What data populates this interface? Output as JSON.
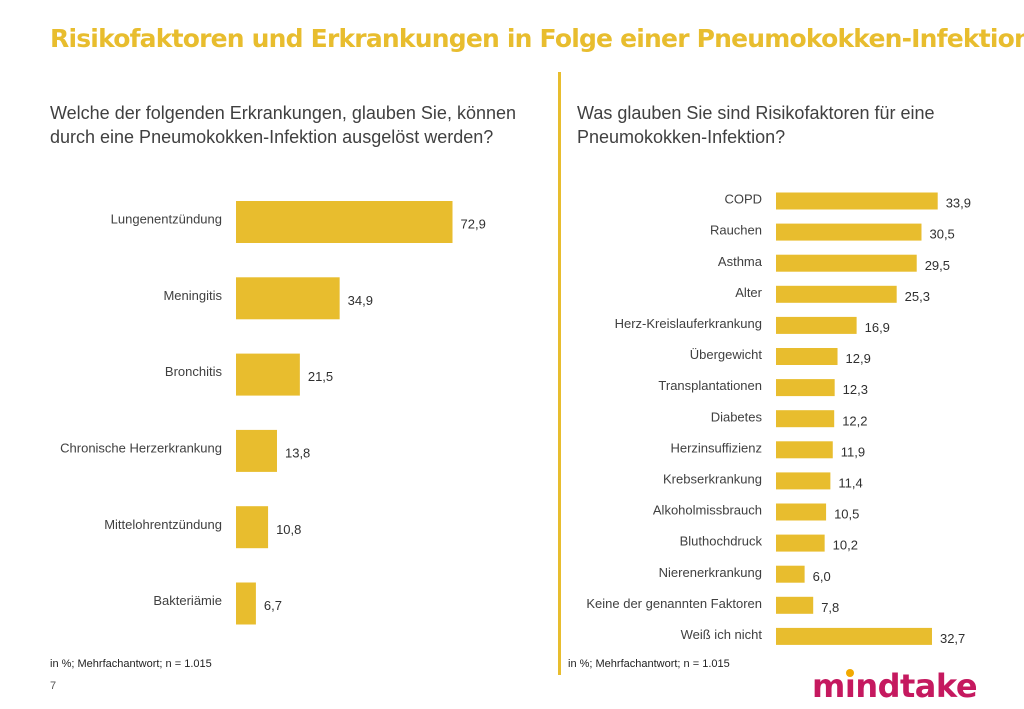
{
  "header": {
    "title": "Risikofaktoren und Erkrankungen in Folge einer Pneumokokken-Infektion"
  },
  "colors": {
    "accent": "#e8bd2e",
    "title": "#e8bd2e",
    "logo": "#c5195f",
    "logo_dot": "#f2a900"
  },
  "left": {
    "question": "Welche der folgenden Erkrankungen, glauben Sie, können durch eine Pneumokokken-Infektion ausgelöst werden?",
    "note": "in %; Mehrfachantwort;  n = 1.015"
  },
  "right": {
    "question": "Was glauben Sie sind Risikofaktoren für eine Pneumokokken-Infektion?",
    "note": "in %; Mehrfachantwort;  n = 1.015"
  },
  "footer": {
    "page_number": "7",
    "logo_pre": "m",
    "logo_dot_letter": "ı",
    "logo_post": "ndtake"
  },
  "chart_data": [
    {
      "type": "bar",
      "orientation": "horizontal",
      "title": "",
      "xlabel": "",
      "ylabel": "",
      "categories": [
        "Lungenentzündung",
        "Meningitis",
        "Bronchitis",
        "Chronische Herzerkrankung",
        "Mittelohrentzündung",
        "Bakteriämie"
      ],
      "values": [
        72.9,
        34.9,
        21.5,
        13.8,
        10.8,
        6.7
      ],
      "value_labels": [
        "72,9",
        "34,9",
        "21,5",
        "13,8",
        "10,8",
        "6,7"
      ],
      "xlim": [
        0,
        100
      ],
      "grid": false,
      "legend": "none"
    },
    {
      "type": "bar",
      "orientation": "horizontal",
      "title": "",
      "xlabel": "",
      "ylabel": "",
      "categories": [
        "COPD",
        "Rauchen",
        "Asthma",
        "Alter",
        "Herz-Kreislauferkrankung",
        "Übergewicht",
        "Transplantationen",
        "Diabetes",
        "Herzinsuffizienz",
        "Krebserkrankung",
        "Alkoholmissbrauch",
        "Bluthochdruck",
        "Nierenerkrankung",
        "Keine der genannten Faktoren",
        "Weiß ich nicht"
      ],
      "values": [
        33.9,
        30.5,
        29.5,
        25.3,
        16.9,
        12.9,
        12.3,
        12.2,
        11.9,
        11.4,
        10.5,
        10.2,
        6.0,
        7.8,
        32.7
      ],
      "value_labels": [
        "33,9",
        "30,5",
        "29,5",
        "25,3",
        "16,9",
        "12,9",
        "12,3",
        "12,2",
        "11,9",
        "11,4",
        "10,5",
        "10,2",
        "6,0",
        "7,8",
        "32,7"
      ],
      "xlim": [
        0,
        100
      ],
      "grid": false,
      "legend": "none"
    }
  ]
}
